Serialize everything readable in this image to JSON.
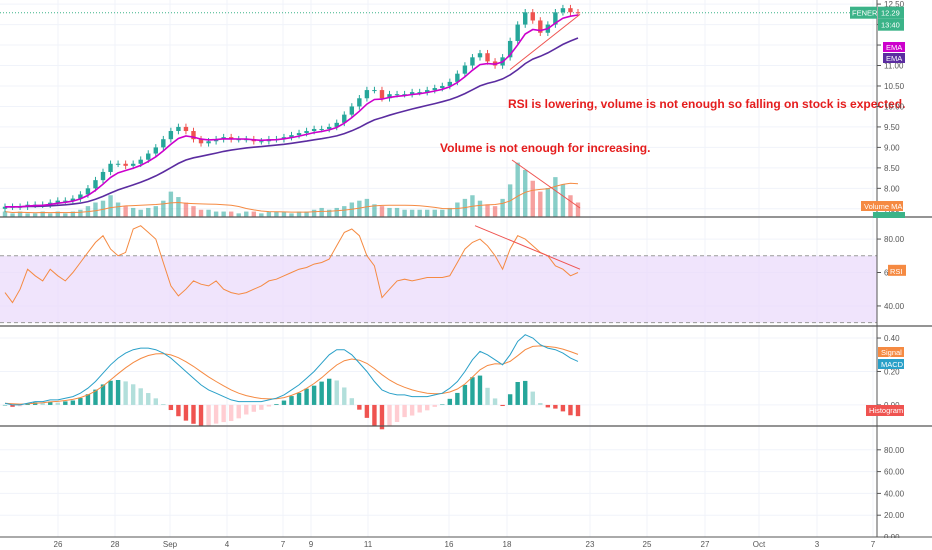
{
  "chart_data": [
    {
      "type": "candlestick",
      "symbol": "FENER",
      "last_price": 12.29,
      "countdown": "13:40",
      "ylim": [
        7.3,
        12.6
      ],
      "y_ticks": [
        "12.50",
        "12.00",
        "11.50",
        "11.00",
        "10.50",
        "10.00",
        "9.50",
        "9.00",
        "8.50",
        "8.00",
        "7.50"
      ],
      "x_ticks": [
        "26",
        "28",
        "Sep",
        "4",
        "7",
        "9",
        "11",
        "16",
        "18",
        "23",
        "25",
        "27",
        "Oct",
        "3",
        "7"
      ],
      "legend": [
        "EMA",
        "EMA",
        "Volume MA",
        "Volume"
      ],
      "close_approx": [
        7.55,
        7.55,
        7.55,
        7.6,
        7.6,
        7.6,
        7.65,
        7.7,
        7.7,
        7.75,
        7.85,
        8.0,
        8.2,
        8.4,
        8.6,
        8.6,
        8.55,
        8.6,
        8.7,
        8.85,
        9.0,
        9.2,
        9.4,
        9.5,
        9.4,
        9.2,
        9.1,
        9.15,
        9.2,
        9.25,
        9.2,
        9.2,
        9.2,
        9.15,
        9.15,
        9.2,
        9.2,
        9.25,
        9.3,
        9.35,
        9.4,
        9.45,
        9.45,
        9.5,
        9.6,
        9.8,
        10.0,
        10.2,
        10.4,
        10.4,
        10.2,
        10.3,
        10.3,
        10.3,
        10.35,
        10.35,
        10.4,
        10.45,
        10.5,
        10.6,
        10.8,
        11.0,
        11.2,
        11.3,
        11.1,
        11.0,
        11.2,
        11.6,
        12.0,
        12.3,
        12.1,
        11.8,
        12.0,
        12.3,
        12.4,
        12.3,
        12.29
      ],
      "annotations": [
        "RSI is lowering, volume is not enough so falling on stock is expected.",
        "Volume is not enough for increasing."
      ]
    },
    {
      "type": "line",
      "name": "RSI",
      "ylim": [
        28,
        92
      ],
      "y_ticks": [
        "80.00",
        "60.00",
        "40.00"
      ],
      "band": [
        30,
        70
      ],
      "last_value": "RSI"
    },
    {
      "type": "bar",
      "name": "MACD",
      "legend": [
        "Signal",
        "MACD",
        "Histogram"
      ],
      "ylim": [
        -0.12,
        0.46
      ],
      "y_ticks": [
        "0.40",
        "0.20",
        "0.00"
      ]
    },
    {
      "type": "empty",
      "ylim": [
        0,
        100
      ],
      "y_ticks": [
        "80.00",
        "60.00",
        "40.00",
        "20.00",
        "0.00"
      ]
    }
  ],
  "colors": {
    "up": "#26a69a",
    "down": "#ef5350",
    "ema_fast": "#cc00cc",
    "ema_slow": "#5b2ca0",
    "rsi": "#f58a42",
    "rsi_band": "#e9d8fb",
    "signal": "#f58a42",
    "macd": "#2aa0c8",
    "price_tag": "#3bb388",
    "note": "#e51d1d"
  }
}
